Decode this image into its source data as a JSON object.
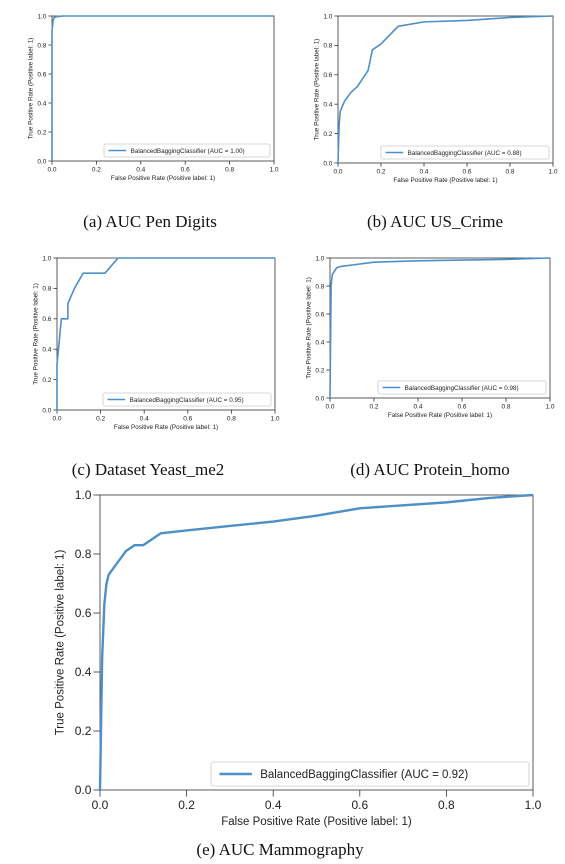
{
  "colors": {
    "roc_line": "#4d8fc7",
    "axes": "#333333"
  },
  "chart_data": [
    {
      "id": "a",
      "type": "line",
      "caption": "(a) AUC Pen Digits",
      "xlabel": "False Positive Rate (Positive label: 1)",
      "ylabel": "True Positive Rate (Positive label: 1)",
      "xlim": [
        0,
        1
      ],
      "ylim": [
        0,
        1
      ],
      "xticks": [
        "0.0",
        "0.2",
        "0.4",
        "0.6",
        "0.8",
        "1.0"
      ],
      "yticks": [
        "0.0",
        "0.2",
        "0.4",
        "0.6",
        "0.8",
        "1.0"
      ],
      "legend_position": "bottom-right",
      "series": [
        {
          "name": "BalancedBaggingClassifier (AUC = 1.00)",
          "x": [
            0,
            0,
            0.005,
            0.01,
            0.02,
            0.05,
            1.0
          ],
          "y": [
            0,
            0.9,
            0.97,
            0.99,
            0.995,
            1.0,
            1.0
          ]
        }
      ]
    },
    {
      "id": "b",
      "type": "line",
      "caption": "(b) AUC US_Crime",
      "xlabel": "False Positive Rate (Positive label: 1)",
      "ylabel": "True Positive Rate (Positive label: 1)",
      "xlim": [
        0,
        1
      ],
      "ylim": [
        0,
        1
      ],
      "xticks": [
        "0.0",
        "0.2",
        "0.4",
        "0.6",
        "0.8",
        "1.0"
      ],
      "yticks": [
        "0.0",
        "0.2",
        "0.4",
        "0.6",
        "0.8",
        "1.0"
      ],
      "legend_position": "bottom-right",
      "series": [
        {
          "name": "BalancedBaggingClassifier (AUC = 0.88)",
          "x": [
            0,
            0.005,
            0.01,
            0.03,
            0.06,
            0.09,
            0.14,
            0.16,
            0.2,
            0.28,
            0.4,
            0.6,
            0.8,
            1.0
          ],
          "y": [
            0,
            0.25,
            0.35,
            0.42,
            0.48,
            0.52,
            0.63,
            0.77,
            0.81,
            0.93,
            0.96,
            0.97,
            0.99,
            1.0
          ]
        }
      ]
    },
    {
      "id": "c",
      "type": "line",
      "caption": "(c) Dataset Yeast_me2",
      "xlabel": "False Positive Rate (Positive label: 1)",
      "ylabel": "True Positive Rate (Positive label: 1)",
      "xlim": [
        0,
        1
      ],
      "ylim": [
        0,
        1
      ],
      "xticks": [
        "0.0",
        "0.2",
        "0.4",
        "0.6",
        "0.8",
        "1.0"
      ],
      "yticks": [
        "0.0",
        "0.2",
        "0.4",
        "0.6",
        "0.8",
        "1.0"
      ],
      "legend_position": "bottom-right",
      "series": [
        {
          "name": "BalancedBaggingClassifier (AUC = 0.95)",
          "x": [
            0,
            0,
            0.02,
            0.02,
            0.05,
            0.05,
            0.08,
            0.12,
            0.22,
            0.28,
            1.0
          ],
          "y": [
            0,
            0.3,
            0.6,
            0.6,
            0.6,
            0.7,
            0.8,
            0.9,
            0.9,
            1.0,
            1.0
          ]
        }
      ]
    },
    {
      "id": "d",
      "type": "line",
      "caption": "(d) AUC Protein_homo",
      "xlabel": "False Positive Rate (Positive label: 1)",
      "ylabel": "True Positive Rate (Positive label: 1)",
      "xlim": [
        0,
        1
      ],
      "ylim": [
        0,
        1
      ],
      "xticks": [
        "0.0",
        "0.2",
        "0.4",
        "0.6",
        "0.8",
        "1.0"
      ],
      "yticks": [
        "0.0",
        "0.2",
        "0.4",
        "0.6",
        "0.8",
        "1.0"
      ],
      "legend_position": "bottom-right",
      "series": [
        {
          "name": "BalancedBaggingClassifier (AUC = 0.98)",
          "x": [
            0,
            0.005,
            0.01,
            0.03,
            0.05,
            0.1,
            0.2,
            0.4,
            0.6,
            0.8,
            1.0
          ],
          "y": [
            0,
            0.8,
            0.88,
            0.93,
            0.94,
            0.95,
            0.97,
            0.98,
            0.985,
            0.99,
            1.0
          ]
        }
      ]
    },
    {
      "id": "e",
      "type": "line",
      "caption": "(e) AUC Mammography",
      "xlabel": "False Positive Rate (Positive label: 1)",
      "ylabel": "True Positive Rate (Positive label: 1)",
      "xlim": [
        0,
        1
      ],
      "ylim": [
        0,
        1
      ],
      "xticks": [
        "0.0",
        "0.2",
        "0.4",
        "0.6",
        "0.8",
        "1.0"
      ],
      "yticks": [
        "0.0",
        "0.2",
        "0.4",
        "0.6",
        "0.8",
        "1.0"
      ],
      "legend_position": "bottom-right",
      "series": [
        {
          "name": "BalancedBaggingClassifier (AUC = 0.92)",
          "x": [
            0,
            0.005,
            0.01,
            0.015,
            0.02,
            0.04,
            0.06,
            0.08,
            0.1,
            0.14,
            0.2,
            0.3,
            0.4,
            0.5,
            0.6,
            0.7,
            0.8,
            0.9,
            1.0
          ],
          "y": [
            0,
            0.45,
            0.63,
            0.7,
            0.73,
            0.77,
            0.81,
            0.83,
            0.83,
            0.87,
            0.88,
            0.895,
            0.91,
            0.93,
            0.955,
            0.965,
            0.975,
            0.99,
            1.0
          ]
        }
      ]
    }
  ]
}
